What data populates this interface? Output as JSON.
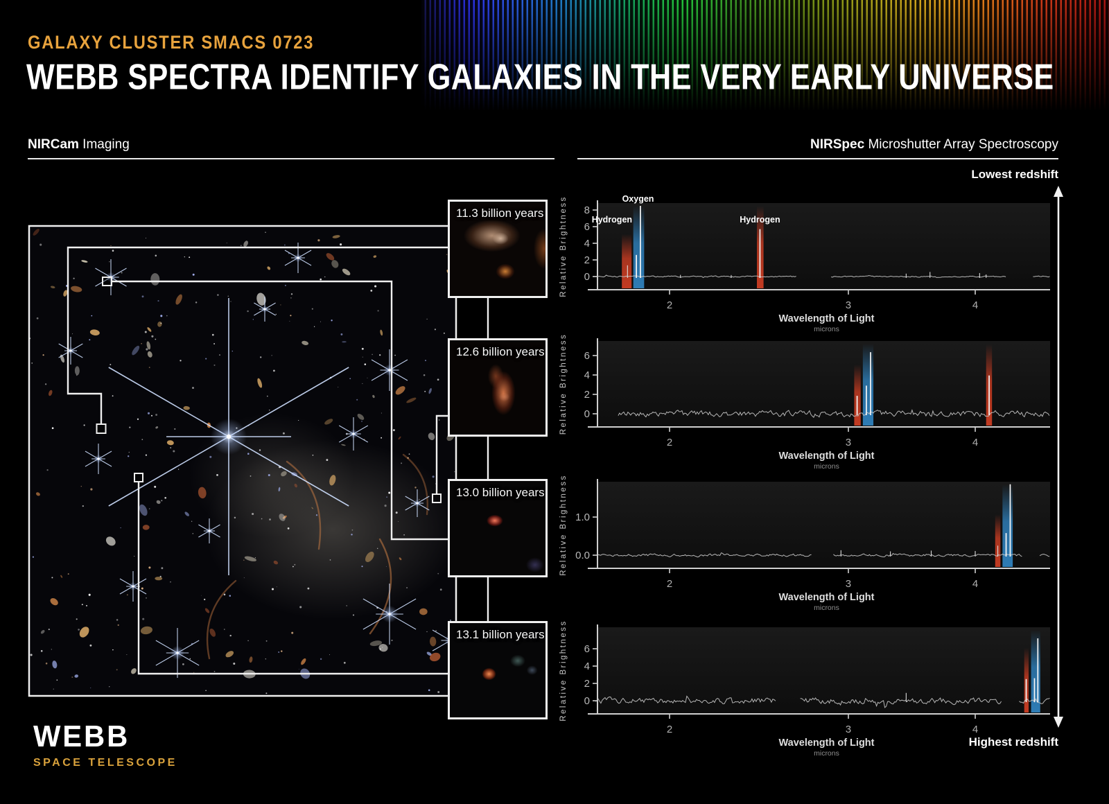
{
  "header": {
    "kicker": "GALAXY CLUSTER SMACS 0723",
    "title": "WEBB SPECTRA IDENTIFY GALAXIES IN THE VERY EARLY UNIVERSE"
  },
  "sections": {
    "left_bold": "NIRCam",
    "left_rest": " Imaging",
    "right_bold": "NIRSpec",
    "right_rest": " Microshutter Array Spectroscopy"
  },
  "redshift_scale": {
    "top": "Lowest redshift",
    "bottom": "Highest redshift"
  },
  "cutouts": [
    {
      "label": "11.3 billion years"
    },
    {
      "label": "12.6 billion years"
    },
    {
      "label": "13.0 billion years"
    },
    {
      "label": "13.1 billion years"
    }
  ],
  "logo": {
    "name": "WEBB",
    "sub": "SPACE TELESCOPE"
  },
  "colors": {
    "accent_gold": "#e8a33d",
    "logo_gold": "#d9a23c",
    "band_red": "#c23b22",
    "band_blue": "#2e7cb5"
  },
  "chart_data": [
    {
      "type": "line",
      "title": "Spectrum of galaxy seen 11.3 billion years ago",
      "age": "11.3 billion years",
      "ylabel": "Relative Brightness",
      "xlabel": "Wavelength of Light",
      "x_unit": "microns",
      "xscale": "log",
      "xrange": [
        1.7,
        4.74
      ],
      "xticks": [
        {
          "v": 2,
          "label": "2"
        },
        {
          "v": 3,
          "label": "3"
        },
        {
          "v": 4,
          "label": "4"
        }
      ],
      "ylim": [
        -1.3,
        9.1
      ],
      "yticks": [
        {
          "v": 0,
          "label": "0"
        },
        {
          "v": 2,
          "label": "2"
        },
        {
          "v": 4,
          "label": "4"
        },
        {
          "v": 6,
          "label": "6"
        },
        {
          "v": 8,
          "label": "8"
        }
      ],
      "noise": {
        "amplitude": 0.12,
        "segments": [
          [
            1.7,
            2.67
          ],
          [
            2.885,
            4.3
          ],
          [
            4.56,
            4.74
          ]
        ]
      },
      "bands": [
        {
          "from": 1.795,
          "to": 1.835,
          "color": "red",
          "element": "Hydrogen"
        },
        {
          "from": 1.842,
          "to": 1.888,
          "color": "blue",
          "element": "Oxygen"
        },
        {
          "from": 2.438,
          "to": 2.475,
          "color": "red",
          "element": "Hydrogen"
        }
      ],
      "peaks": [
        {
          "wl": 1.818,
          "h": 1.35
        },
        {
          "wl": 1.855,
          "h": 2.6
        },
        {
          "wl": 1.872,
          "h": 8.5
        },
        {
          "wl": 2.455,
          "h": 5.7
        },
        {
          "wl": 2.05,
          "h": 0.2
        },
        {
          "wl": 2.3,
          "h": 0.18
        },
        {
          "wl": 3.42,
          "h": 0.35
        },
        {
          "wl": 3.61,
          "h": 0.55
        },
        {
          "wl": 4.04,
          "h": 0.42
        },
        {
          "wl": 4.1,
          "h": 0.25
        }
      ],
      "annotations": [
        {
          "text": "Hydrogen",
          "wl": 1.755,
          "y": 321
        },
        {
          "text": "Oxygen",
          "wl": 1.862,
          "y": 291
        },
        {
          "text": "Hydrogen",
          "wl": 2.455,
          "y": 321
        }
      ]
    },
    {
      "type": "line",
      "title": "Spectrum of galaxy seen 12.6 billion years ago",
      "age": "12.6 billion years",
      "ylabel": "Relative Brightness",
      "xlabel": "Wavelength of Light",
      "x_unit": "microns",
      "xscale": "log",
      "xrange": [
        1.7,
        4.74
      ],
      "xticks": [
        {
          "v": 2,
          "label": "2"
        },
        {
          "v": 3,
          "label": "3"
        },
        {
          "v": 4,
          "label": "4"
        }
      ],
      "ylim": [
        -1.8,
        7.1
      ],
      "yticks": [
        {
          "v": 0,
          "label": "0"
        },
        {
          "v": 2,
          "label": "2"
        },
        {
          "v": 4,
          "label": "4"
        },
        {
          "v": 6,
          "label": "6"
        }
      ],
      "noise": {
        "amplitude": 0.5,
        "segments": [
          [
            1.78,
            4.74
          ]
        ]
      },
      "bands": [
        {
          "from": 3.04,
          "to": 3.085,
          "color": "red"
        },
        {
          "from": 3.1,
          "to": 3.175,
          "color": "blue"
        },
        {
          "from": 4.1,
          "to": 4.155,
          "color": "red"
        }
      ],
      "peaks": [
        {
          "wl": 3.06,
          "h": 1.85
        },
        {
          "wl": 3.125,
          "h": 2.9
        },
        {
          "wl": 3.155,
          "h": 6.35
        },
        {
          "wl": 4.128,
          "h": 3.95
        }
      ],
      "annotations": []
    },
    {
      "type": "line",
      "title": "Spectrum of galaxy seen 13.0 billion years ago",
      "age": "13.0 billion years",
      "ylabel": "Relative Brightness",
      "xlabel": "Wavelength of Light",
      "x_unit": "microns",
      "xscale": "log",
      "xrange": [
        1.7,
        4.74
      ],
      "xticks": [
        {
          "v": 2,
          "label": "2"
        },
        {
          "v": 3,
          "label": "3"
        },
        {
          "v": 4,
          "label": "4"
        }
      ],
      "ylim": [
        -0.35,
        1.95
      ],
      "yticks": [
        {
          "v": 0,
          "label": "0.0"
        },
        {
          "v": 1,
          "label": "1.0"
        }
      ],
      "noise": {
        "amplitude": 0.055,
        "segments": [
          [
            1.7,
            2.76
          ],
          [
            2.9,
            4.45
          ],
          [
            4.63,
            4.74
          ]
        ]
      },
      "bands": [
        {
          "from": 4.185,
          "to": 4.235,
          "color": "red"
        },
        {
          "from": 4.255,
          "to": 4.355,
          "color": "blue"
        }
      ],
      "peaks": [
        {
          "wl": 4.21,
          "h": 0.25
        },
        {
          "wl": 4.29,
          "h": 0.58
        },
        {
          "wl": 4.33,
          "h": 1.86
        },
        {
          "wl": 2.95,
          "h": 0.13
        },
        {
          "wl": 3.3,
          "h": 0.1
        },
        {
          "wl": 3.62,
          "h": 0.12
        },
        {
          "wl": 4.0,
          "h": 0.11
        }
      ],
      "annotations": []
    },
    {
      "type": "line",
      "title": "Spectrum of galaxy seen 13.1 billion years ago",
      "age": "13.1 billion years",
      "ylabel": "Relative Brightness",
      "xlabel": "Wavelength of Light",
      "x_unit": "microns",
      "xscale": "log",
      "xrange": [
        1.7,
        4.74
      ],
      "xticks": [
        {
          "v": 2,
          "label": "2"
        },
        {
          "v": 3,
          "label": "3"
        },
        {
          "v": 4,
          "label": "4"
        }
      ],
      "ylim": [
        -1.8,
        8.0
      ],
      "yticks": [
        {
          "v": 0,
          "label": "0"
        },
        {
          "v": 2,
          "label": "2"
        },
        {
          "v": 4,
          "label": "4"
        },
        {
          "v": 6,
          "label": "6"
        }
      ],
      "noise": {
        "amplitude": 0.55,
        "segments": [
          [
            1.69,
            2.55
          ],
          [
            2.69,
            4.25
          ],
          [
            4.42,
            4.74
          ]
        ]
      },
      "bands": [
        {
          "from": 4.47,
          "to": 4.515,
          "color": "red"
        },
        {
          "from": 4.54,
          "to": 4.635,
          "color": "blue"
        }
      ],
      "peaks": [
        {
          "wl": 4.49,
          "h": 2.5
        },
        {
          "wl": 4.575,
          "h": 2.6
        },
        {
          "wl": 4.61,
          "h": 7.2
        },
        {
          "wl": 3.42,
          "h": 0.9
        }
      ],
      "annotations": []
    }
  ]
}
